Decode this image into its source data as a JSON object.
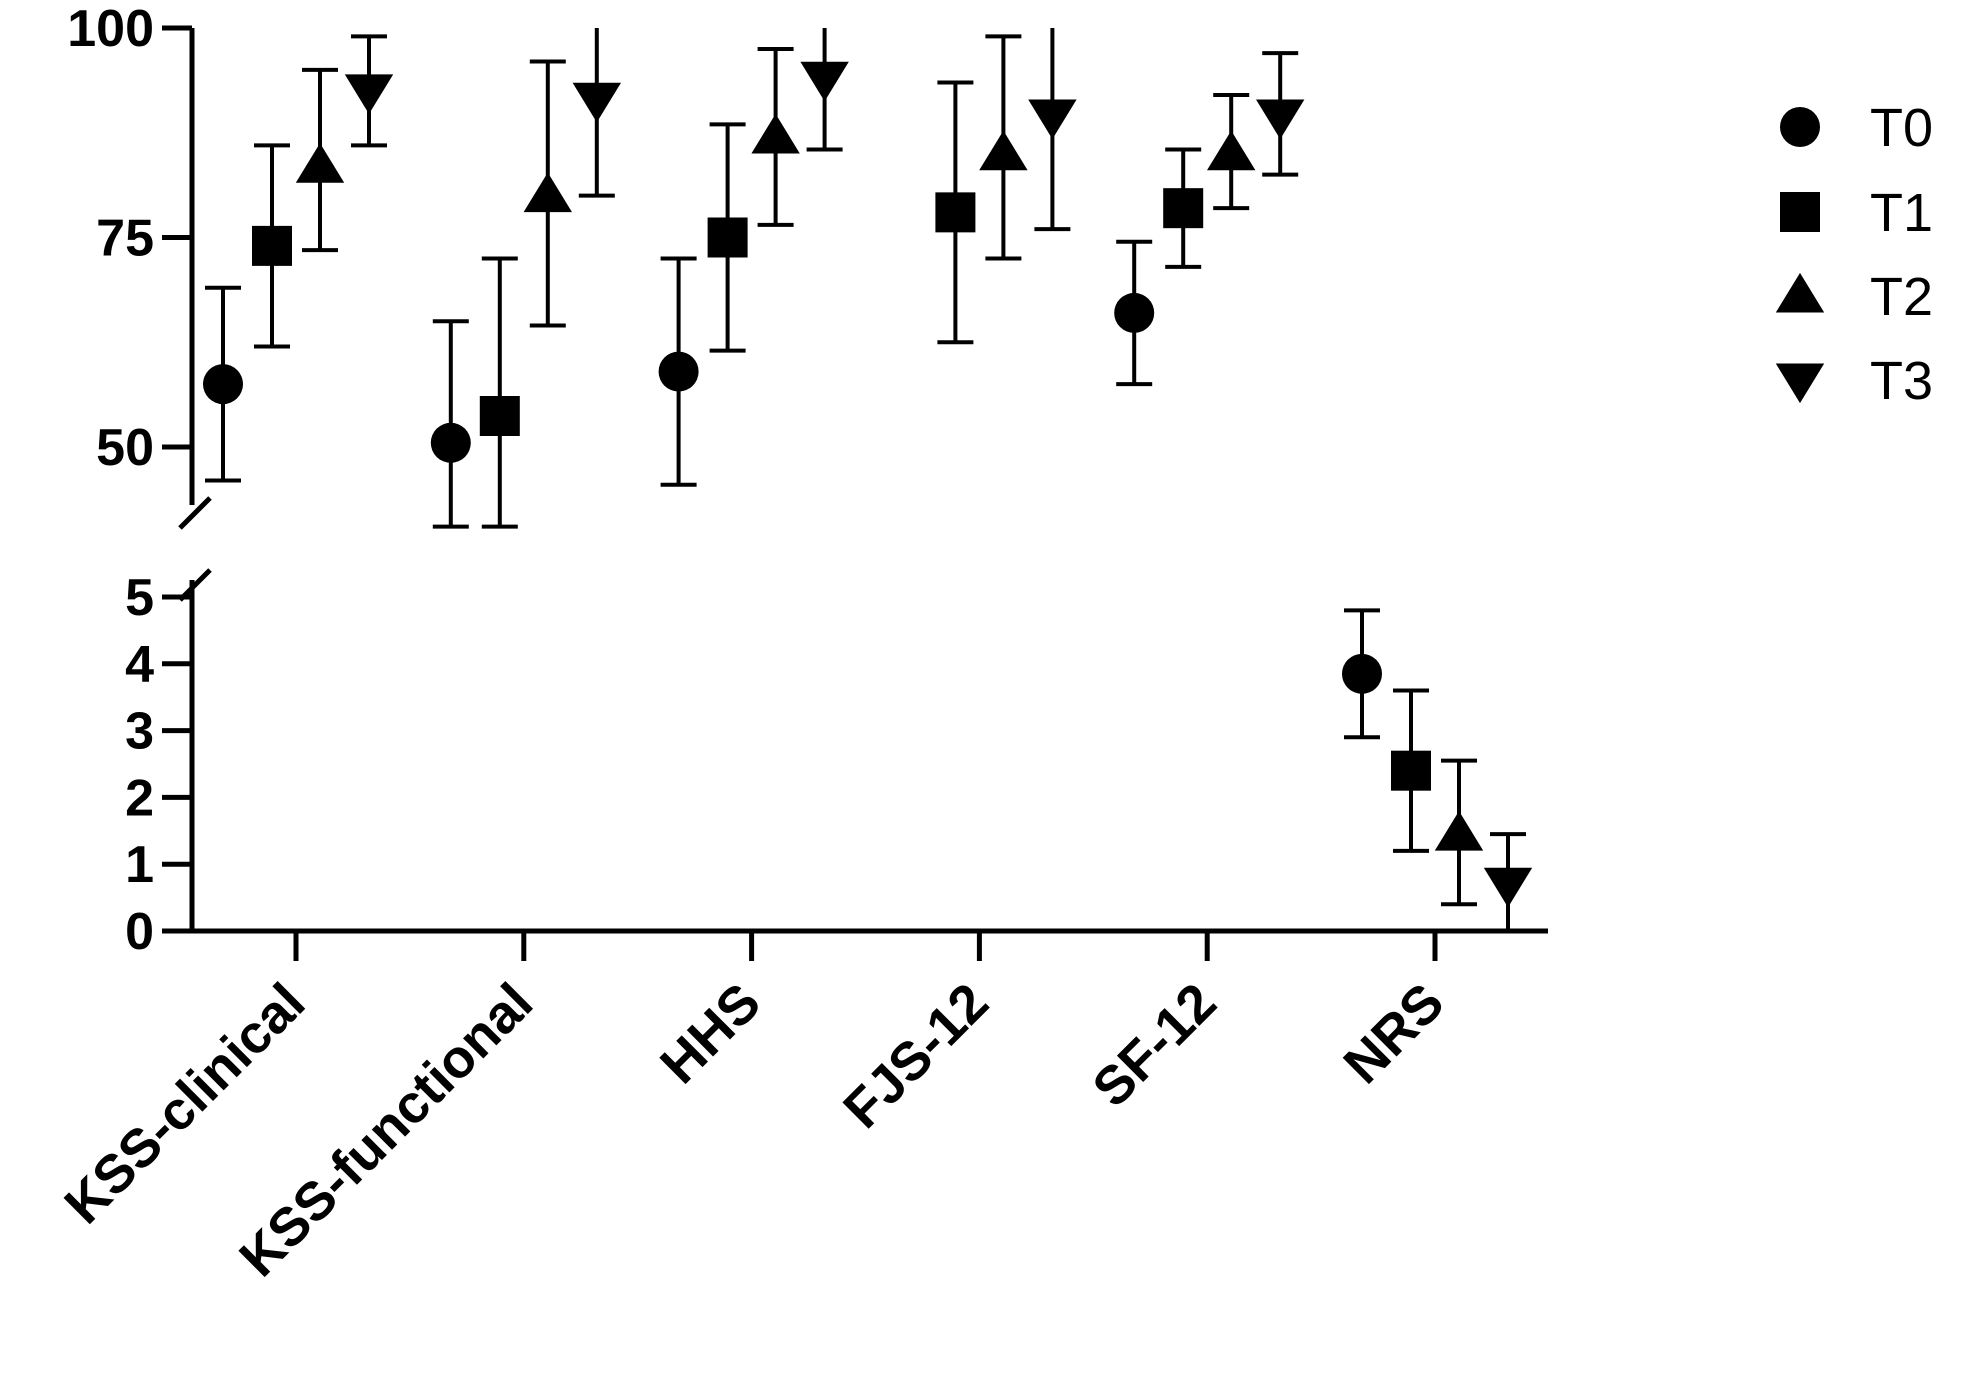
{
  "chart_data": {
    "type": "scatter",
    "title": "",
    "xlabel": "",
    "ylabel": "",
    "broken_y_axis": true,
    "upper_segment": {
      "ylim": [
        45,
        100
      ],
      "ticks": [
        "100",
        "75",
        "50"
      ]
    },
    "lower_segment": {
      "ylim": [
        0,
        5
      ],
      "ticks": [
        "5",
        "4",
        "3",
        "2",
        "1",
        "0"
      ]
    },
    "categories": [
      "KSS-clinical",
      "KSS-functional",
      "HHS",
      "FJS-12",
      "SF-12",
      "NRS"
    ],
    "legend_position": "right",
    "series": [
      {
        "name": "T0",
        "marker": "circle",
        "values": [
          57.5,
          50.5,
          59,
          null,
          66,
          3.85
        ],
        "lower": [
          46,
          40.5,
          45.5,
          null,
          57.5,
          2.9
        ],
        "upper": [
          69,
          65,
          72.5,
          null,
          74.5,
          4.8
        ]
      },
      {
        "name": "T1",
        "marker": "square",
        "values": [
          74,
          53.7,
          75,
          78,
          78.5,
          2.4
        ],
        "lower": [
          62,
          40.5,
          61.5,
          62.5,
          71.5,
          1.2
        ],
        "upper": [
          86,
          72.5,
          88.5,
          93.5,
          85.5,
          3.6
        ]
      },
      {
        "name": "T2",
        "marker": "triangle-up",
        "values": [
          83.5,
          80,
          87,
          85,
          85,
          1.45
        ],
        "lower": [
          73.5,
          64.5,
          76.5,
          72.5,
          78.5,
          0.4
        ],
        "upper": [
          95,
          96,
          97.5,
          99,
          92,
          2.55
        ]
      },
      {
        "name": "T3",
        "marker": "triangle-down",
        "values": [
          92.5,
          91.5,
          94,
          89.5,
          89.5,
          0.7
        ],
        "lower": [
          86,
          80,
          85.5,
          76,
          82.5,
          0
        ],
        "upper": [
          99,
          100,
          100,
          100,
          97,
          1.45
        ]
      }
    ]
  }
}
